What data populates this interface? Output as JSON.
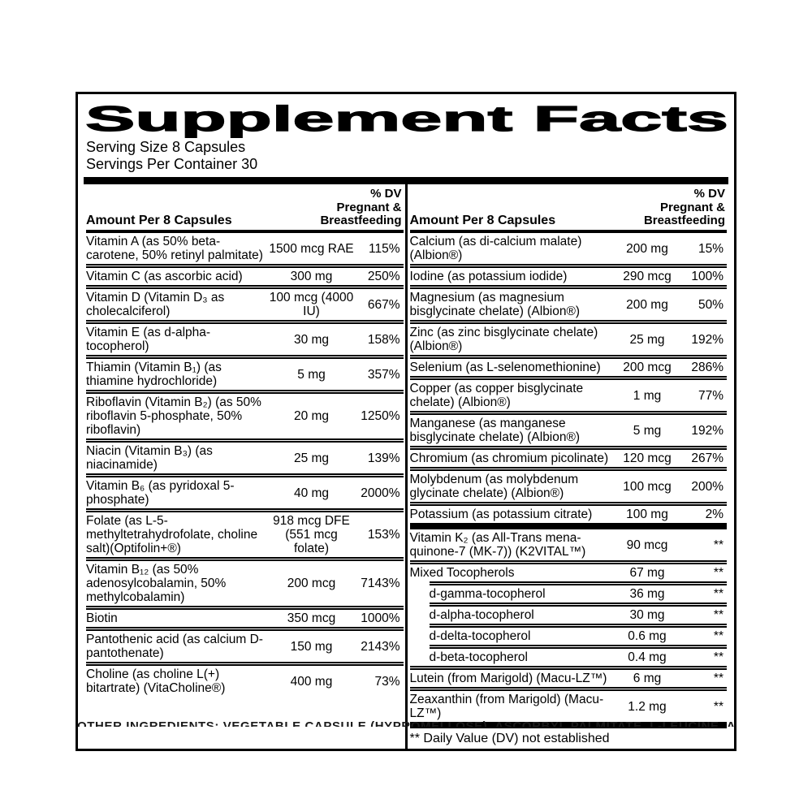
{
  "supplement_facts": {
    "title": "Supplement Facts",
    "serving_size": "Serving Size 8 Capsules",
    "servings_per_container": "Servings Per Container 30",
    "column_header": {
      "amount": "Amount Per 8 Capsules",
      "dv_line1": "% DV",
      "dv_line2": "Pregnant &",
      "dv_line3": "Breastfeeding"
    },
    "left_column": {
      "rows": [
        {
          "name": "Vitamin A (as 50% beta-carotene, 50% retinyl palmitate)",
          "amount": "1500 mcg RAE",
          "dv": "115%"
        },
        {
          "name": "Vitamin C (as ascorbic acid)",
          "amount": "300 mg",
          "dv": "250%"
        },
        {
          "name": "Vitamin D (Vitamin D₃ as cholecalciferol)",
          "amount": "100 mcg (4000 IU)",
          "dv": "667%"
        },
        {
          "name": "Vitamin E (as d-alpha-tocopherol)",
          "amount": "30 mg",
          "dv": "158%"
        },
        {
          "name": "Thiamin (Vitamin B₁) (as thiamine hydrochloride)",
          "amount": "5 mg",
          "dv": "357%"
        },
        {
          "name": "Riboflavin (Vitamin B₂) (as 50% riboflavin 5-phosphate, 50% riboflavin)",
          "amount": "20 mg",
          "dv": "1250%"
        },
        {
          "name": "Niacin (Vitamin B₃) (as niacinamide)",
          "amount": "25 mg",
          "dv": "139%"
        },
        {
          "name": "Vitamin B₆ (as pyridoxal 5-phosphate)",
          "amount": "40 mg",
          "dv": "2000%"
        },
        {
          "name": "Folate (as L-5-methyltetrahydrofolate, choline salt)(Optifolin+®)",
          "amount": "918 mcg DFE (551 mcg folate)",
          "dv": "153%"
        },
        {
          "name": "Vitamin B₁₂ (as 50% adenosylcobalamin, 50% methylcobalamin)",
          "amount": "200 mcg",
          "dv": "7143%"
        },
        {
          "name": "Biotin",
          "amount": "350 mcg",
          "dv": "1000%"
        },
        {
          "name": "Pantothenic acid (as calcium D-pantothenate)",
          "amount": "150 mg",
          "dv": "2143%"
        },
        {
          "name": "Choline (as choline L(+) bitartrate) (VitaCholine®)",
          "amount": "400 mg",
          "dv": "73%"
        }
      ]
    },
    "right_column": {
      "main_rows": [
        {
          "name": "Calcium (as di-calcium malate) (Albion®)",
          "amount": "200 mg",
          "dv": "15%"
        },
        {
          "name": "Iodine (as potassium iodide)",
          "amount": "290 mcg",
          "dv": "100%"
        },
        {
          "name": "Magnesium (as magnesium bisglycinate chelate) (Albion®)",
          "amount": "200 mg",
          "dv": "50%"
        },
        {
          "name": "Zinc (as zinc bisglycinate chelate) (Albion®)",
          "amount": "25 mg",
          "dv": "192%"
        },
        {
          "name": "Selenium (as L-selenomethionine)",
          "amount": "200 mcg",
          "dv": "286%"
        },
        {
          "name": "Copper (as copper bisglycinate chelate) (Albion®)",
          "amount": "1 mg",
          "dv": "77%"
        },
        {
          "name": "Manganese (as manganese bisglycinate chelate) (Albion®)",
          "amount": "5 mg",
          "dv": "192%"
        },
        {
          "name": "Chromium (as chromium picolinate)",
          "amount": "120 mcg",
          "dv": "267%"
        },
        {
          "name": "Molybdenum (as molybdenum glycinate chelate) (Albion®)",
          "amount": "100 mcg",
          "dv": "200%"
        },
        {
          "name": "Potassium (as potassium citrate)",
          "amount": "100 mg",
          "dv": "2%"
        }
      ],
      "other_rows": [
        {
          "name": "Vitamin K₂ (as All-Trans mena-quinone-7 (MK-7)) (K2VITAL™)",
          "amount": "90 mcg",
          "dv": "**"
        },
        {
          "name": "Mixed Tocopherols",
          "amount": "67 mg",
          "dv": "**"
        },
        {
          "name": "d-gamma-tocopherol",
          "amount": "36 mg",
          "dv": "**",
          "indent": "true"
        },
        {
          "name": "d-alpha-tocopherol",
          "amount": "30 mg",
          "dv": "**",
          "indent": "true"
        },
        {
          "name": "d-delta-tocopherol",
          "amount": "0.6 mg",
          "dv": "**",
          "indent": "true"
        },
        {
          "name": "d-beta-tocopherol",
          "amount": "0.4 mg",
          "dv": "**",
          "indent": "true"
        },
        {
          "name": "Lutein (from Marigold) (Macu-LZ™)",
          "amount": "6 mg",
          "dv": "**"
        },
        {
          "name": "Zeaxanthin (from Marigold) (Macu-LZ™)",
          "amount": "1.2 mg",
          "dv": "**"
        }
      ],
      "footnote": "** Daily Value (DV) not established"
    },
    "other_ingredients_partial": "OTHER INGREDIENTS: VEGETABLE CAPSULE (HYPROMELLOSE), ASCORBYL PALMITATE, L-LEUCINE, AND"
  },
  "colors": {
    "text": "#000000",
    "background": "#ffffff"
  }
}
